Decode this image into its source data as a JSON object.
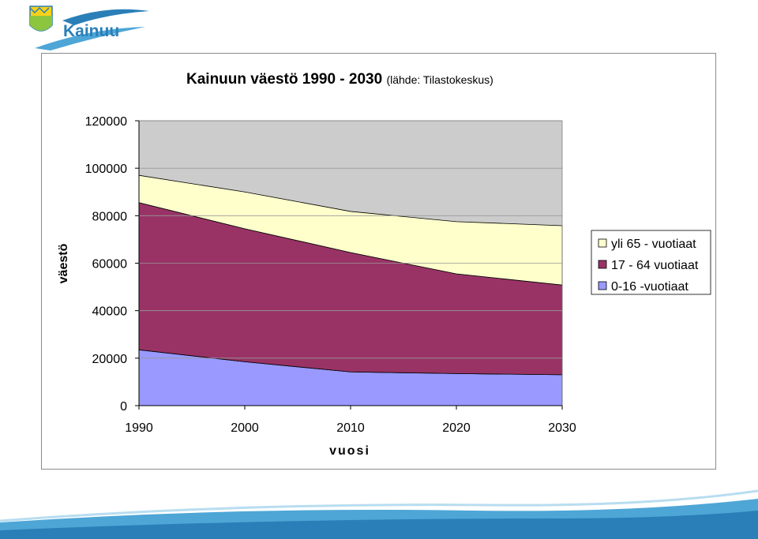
{
  "logo": {
    "text": "Kainuu"
  },
  "chart_data": {
    "type": "area",
    "stacked": true,
    "title": "Kainuun väestö 1990 - 2030",
    "subtitle": "(lähde: Tilastokeskus)",
    "xlabel": "vuosi",
    "ylabel": "väestö",
    "x": [
      1990,
      2000,
      2010,
      2020,
      2030
    ],
    "ylim": [
      0,
      120000
    ],
    "yticks": [
      0,
      20000,
      40000,
      60000,
      80000,
      100000,
      120000
    ],
    "grid": true,
    "plot_background": "#cccccc",
    "legend_position": "right",
    "series": [
      {
        "name": "0-16 -vuotiaat",
        "color": "#9999ff",
        "values": [
          23500,
          18500,
          14200,
          13500,
          13000
        ]
      },
      {
        "name": "17 - 64 vuotiaat",
        "color": "#993366",
        "values": [
          62000,
          56000,
          50300,
          42000,
          37800
        ]
      },
      {
        "name": "yli 65 - vuotiaat",
        "color": "#ffffcc",
        "values": [
          11500,
          15500,
          17300,
          22000,
          25000
        ]
      }
    ],
    "legend": [
      "yli 65 - vuotiaat",
      "17 - 64 vuotiaat",
      "0-16 -vuotiaat"
    ]
  },
  "colors": {
    "logo_blue": "#2a7fb8",
    "logo_green": "#8cc63f",
    "logo_yellow": "#f7d117",
    "wave": "#4da6d6"
  }
}
